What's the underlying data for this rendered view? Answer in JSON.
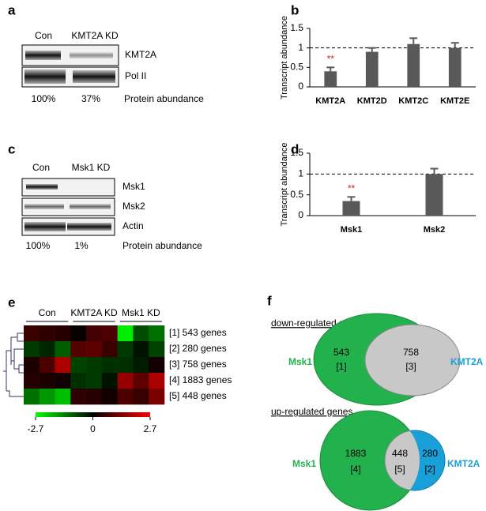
{
  "panel_a": {
    "label": "a",
    "lanes": [
      "Con",
      "KMT2A KD"
    ],
    "bands": [
      "KMT2A",
      "Pol II"
    ],
    "abundance": [
      "100%",
      "37%"
    ],
    "abundance_label": "Protein abundance"
  },
  "panel_c": {
    "label": "c",
    "lanes": [
      "Con",
      "Msk1 KD"
    ],
    "bands": [
      "Msk1",
      "Msk2",
      "Actin"
    ],
    "abundance": [
      "100%",
      "1%"
    ],
    "abundance_label": "Protein abundance"
  },
  "chart_data": [
    {
      "type": "bar",
      "label": "b",
      "ylabel": "Transcript abundance",
      "categories": [
        "KMT2A",
        "KMT2D",
        "KMT2C",
        "KMT2E"
      ],
      "values": [
        0.4,
        0.9,
        1.1,
        1.0
      ],
      "errors": [
        0.1,
        0.1,
        0.15,
        0.13
      ],
      "significance": [
        "**",
        null,
        null,
        null
      ],
      "color": "#595959",
      "ylim": [
        0,
        1.5
      ],
      "yticks": [
        0,
        0.5,
        1,
        1.5
      ],
      "reference_line": 1
    },
    {
      "type": "bar",
      "label": "d",
      "ylabel": "Transcript abundance",
      "categories": [
        "Msk1",
        "Msk2"
      ],
      "values": [
        0.35,
        1.0
      ],
      "errors": [
        0.1,
        0.13
      ],
      "significance": [
        "**",
        null
      ],
      "color": "#595959",
      "ylim": [
        0,
        1.5
      ],
      "yticks": [
        0,
        0.5,
        1,
        1.5
      ],
      "reference_line": 1
    },
    {
      "type": "heatmap",
      "label": "e",
      "column_groups": [
        "Con",
        "KMT2A KD",
        "Msk1 KD"
      ],
      "rows": [
        "[1] 543 genes",
        "[2] 280 genes",
        "[3] 758 genes",
        "[4] 1883 genes",
        "[5] 448 genes"
      ],
      "values": [
        [
          0.6,
          0.5,
          0.4,
          0.1,
          0.7,
          0.8,
          -2.5,
          -0.8,
          -1.2
        ],
        [
          -0.6,
          -0.4,
          -1.0,
          0.9,
          1.0,
          0.6,
          -0.6,
          -0.2,
          -0.7
        ],
        [
          0.3,
          0.8,
          1.8,
          -0.7,
          -0.6,
          -0.5,
          -0.5,
          -0.3,
          0.2
        ],
        [
          0.4,
          0.3,
          0.2,
          -0.5,
          -0.6,
          -0.2,
          1.6,
          1.0,
          1.8
        ],
        [
          -1.2,
          -1.6,
          -2.0,
          0.5,
          0.4,
          0.2,
          0.8,
          0.6,
          1.3
        ]
      ],
      "zlim": [
        -2.7,
        2.7
      ],
      "colorbar_ticks": [
        -2.7,
        0,
        2.7
      ]
    }
  ],
  "panel_f": {
    "label": "f",
    "down": {
      "title": "down-regulated genes",
      "set_a": "Msk1",
      "set_b": "KMT2A",
      "only_a": "543",
      "only_a_id": "[1]",
      "both": "758",
      "both_id": "[3]"
    },
    "up": {
      "title": "up-regulated genes",
      "set_a": "Msk1",
      "set_b": "KMT2A",
      "only_a": "1883",
      "only_a_id": "[4]",
      "both": "448",
      "both_id": "[5]",
      "only_b": "280",
      "only_b_id": "[2]"
    }
  }
}
